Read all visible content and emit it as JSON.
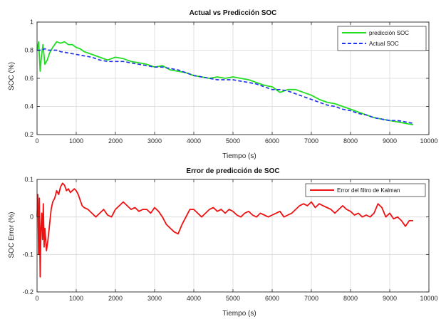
{
  "colors": {
    "green": "#22dd22",
    "blue": "#2233ee",
    "red": "#ee1111",
    "grid": "#d9d9d9",
    "axis": "#262626"
  },
  "chart_data": [
    {
      "type": "line",
      "title": "Actual vs Predicción SOC",
      "xlabel": "Tiempo (s)",
      "ylabel": "SOC (%)",
      "xlim": [
        0,
        10000
      ],
      "ylim": [
        0.2,
        1.0
      ],
      "xticks": [
        0,
        1000,
        2000,
        3000,
        4000,
        5000,
        6000,
        7000,
        8000,
        9000,
        10000
      ],
      "yticks": [
        0.2,
        0.4,
        0.6,
        0.8,
        1.0
      ],
      "xtick_labels": [
        "0",
        "1000",
        "2000",
        "3000",
        "4000",
        "5000",
        "6000",
        "7000",
        "8000",
        "9000",
        "10000"
      ],
      "ytick_labels": [
        "0.2",
        "0.4",
        "0.6",
        "0.8",
        "1"
      ],
      "grid": true,
      "legend_position": "top-right",
      "series": [
        {
          "name": "predicción SOC",
          "color": "#22dd22",
          "style": "solid",
          "x": [
            0,
            40,
            80,
            110,
            150,
            200,
            260,
            320,
            400,
            500,
            600,
            700,
            800,
            900,
            1000,
            1100,
            1200,
            1400,
            1600,
            1800,
            2000,
            2200,
            2400,
            2600,
            2800,
            3000,
            3200,
            3400,
            3600,
            3800,
            4000,
            4200,
            4400,
            4600,
            4800,
            5000,
            5200,
            5400,
            5600,
            5800,
            6000,
            6200,
            6400,
            6600,
            6800,
            7000,
            7200,
            7400,
            7600,
            7800,
            8000,
            8200,
            8400,
            8600,
            8800,
            9000,
            9200,
            9400,
            9600
          ],
          "values": [
            0.8,
            0.86,
            0.65,
            0.75,
            0.84,
            0.7,
            0.73,
            0.78,
            0.82,
            0.86,
            0.85,
            0.86,
            0.84,
            0.84,
            0.82,
            0.81,
            0.79,
            0.77,
            0.75,
            0.73,
            0.75,
            0.74,
            0.72,
            0.71,
            0.7,
            0.68,
            0.69,
            0.66,
            0.65,
            0.64,
            0.62,
            0.61,
            0.6,
            0.61,
            0.6,
            0.61,
            0.6,
            0.59,
            0.57,
            0.55,
            0.54,
            0.5,
            0.52,
            0.52,
            0.5,
            0.48,
            0.45,
            0.43,
            0.42,
            0.4,
            0.38,
            0.36,
            0.34,
            0.32,
            0.31,
            0.3,
            0.29,
            0.28,
            0.27
          ]
        },
        {
          "name": "Actual SOC",
          "color": "#2233ee",
          "style": "dashed",
          "x": [
            0,
            50,
            100,
            200,
            300,
            400,
            500,
            600,
            800,
            1000,
            1200,
            1400,
            1600,
            1800,
            2000,
            2200,
            2400,
            2600,
            2800,
            3000,
            3200,
            3400,
            3600,
            3800,
            4000,
            4200,
            4400,
            4600,
            4800,
            5000,
            5200,
            5400,
            5600,
            5800,
            6000,
            6200,
            6400,
            6600,
            6800,
            7000,
            7200,
            7400,
            7600,
            7800,
            8000,
            8200,
            8400,
            8600,
            8800,
            9000,
            9200,
            9400,
            9600
          ],
          "values": [
            0.8,
            0.8,
            0.8,
            0.81,
            0.8,
            0.8,
            0.8,
            0.79,
            0.78,
            0.77,
            0.76,
            0.75,
            0.73,
            0.72,
            0.72,
            0.72,
            0.71,
            0.7,
            0.69,
            0.68,
            0.68,
            0.67,
            0.66,
            0.64,
            0.62,
            0.61,
            0.6,
            0.59,
            0.59,
            0.59,
            0.58,
            0.57,
            0.56,
            0.54,
            0.52,
            0.52,
            0.51,
            0.49,
            0.47,
            0.45,
            0.43,
            0.41,
            0.4,
            0.38,
            0.37,
            0.35,
            0.34,
            0.32,
            0.31,
            0.3,
            0.3,
            0.29,
            0.28
          ]
        }
      ]
    },
    {
      "type": "line",
      "title": "Error de predicción de SOC",
      "xlabel": "Tiempo (s)",
      "ylabel": "SOC Error (%)",
      "xlim": [
        0,
        10000
      ],
      "ylim": [
        -0.2,
        0.1
      ],
      "xticks": [
        0,
        1000,
        2000,
        3000,
        4000,
        5000,
        6000,
        7000,
        8000,
        9000,
        10000
      ],
      "yticks": [
        -0.2,
        -0.1,
        0,
        0.1
      ],
      "xtick_labels": [
        "0",
        "1000",
        "2000",
        "3000",
        "4000",
        "5000",
        "6000",
        "7000",
        "8000",
        "9000",
        "10000"
      ],
      "ytick_labels": [
        "-0.2",
        "-0.1",
        "0",
        "0.1"
      ],
      "grid": true,
      "legend_position": "top-right",
      "series": [
        {
          "name": "Error del filtro de Kalman",
          "color": "#ee1111",
          "style": "solid",
          "x": [
            0,
            20,
            40,
            60,
            80,
            100,
            120,
            140,
            160,
            180,
            200,
            240,
            280,
            320,
            360,
            400,
            450,
            500,
            550,
            600,
            650,
            700,
            750,
            800,
            850,
            900,
            950,
            1000,
            1050,
            1100,
            1150,
            1200,
            1300,
            1400,
            1500,
            1600,
            1700,
            1800,
            1900,
            2000,
            2100,
            2200,
            2300,
            2400,
            2500,
            2600,
            2700,
            2800,
            2900,
            3000,
            3100,
            3200,
            3300,
            3400,
            3500,
            3600,
            3700,
            3800,
            3900,
            4000,
            4100,
            4200,
            4300,
            4400,
            4500,
            4600,
            4700,
            4800,
            4900,
            5000,
            5100,
            5200,
            5300,
            5400,
            5500,
            5600,
            5700,
            5800,
            5900,
            6000,
            6100,
            6200,
            6300,
            6400,
            6500,
            6600,
            6700,
            6800,
            6900,
            7000,
            7100,
            7200,
            7300,
            7400,
            7500,
            7600,
            7700,
            7800,
            7900,
            8000,
            8100,
            8200,
            8300,
            8400,
            8500,
            8600,
            8700,
            8800,
            8900,
            9000,
            9100,
            9200,
            9300,
            9400,
            9500,
            9600
          ],
          "values": [
            0.0,
            0.06,
            -0.1,
            0.05,
            -0.16,
            -0.03,
            0.01,
            -0.06,
            0.035,
            -0.08,
            -0.03,
            -0.09,
            -0.06,
            -0.02,
            0.02,
            0.04,
            0.05,
            0.07,
            0.06,
            0.08,
            0.09,
            0.085,
            0.07,
            0.075,
            0.065,
            0.07,
            0.075,
            0.07,
            0.06,
            0.045,
            0.03,
            0.025,
            0.02,
            0.01,
            0.0,
            0.01,
            0.02,
            0.005,
            0.0,
            0.02,
            0.03,
            0.04,
            0.03,
            0.02,
            0.025,
            0.015,
            0.02,
            0.02,
            0.01,
            0.025,
            0.015,
            0.0,
            -0.02,
            -0.03,
            -0.04,
            -0.045,
            -0.02,
            0.0,
            0.02,
            0.02,
            0.01,
            0.0,
            0.01,
            0.02,
            0.025,
            0.015,
            0.02,
            0.01,
            0.02,
            0.015,
            0.005,
            0.0,
            0.01,
            0.015,
            0.005,
            0.0,
            0.01,
            0.005,
            0.0,
            0.005,
            0.01,
            0.015,
            0.0,
            0.005,
            0.01,
            0.02,
            0.03,
            0.035,
            0.03,
            0.04,
            0.025,
            0.035,
            0.03,
            0.025,
            0.02,
            0.01,
            0.02,
            0.03,
            0.02,
            0.015,
            0.005,
            0.01,
            0.0,
            0.005,
            0.0,
            0.01,
            0.035,
            0.025,
            0.0,
            0.01,
            -0.005,
            0.0,
            -0.01,
            -0.025,
            -0.01,
            -0.01
          ]
        }
      ]
    }
  ]
}
